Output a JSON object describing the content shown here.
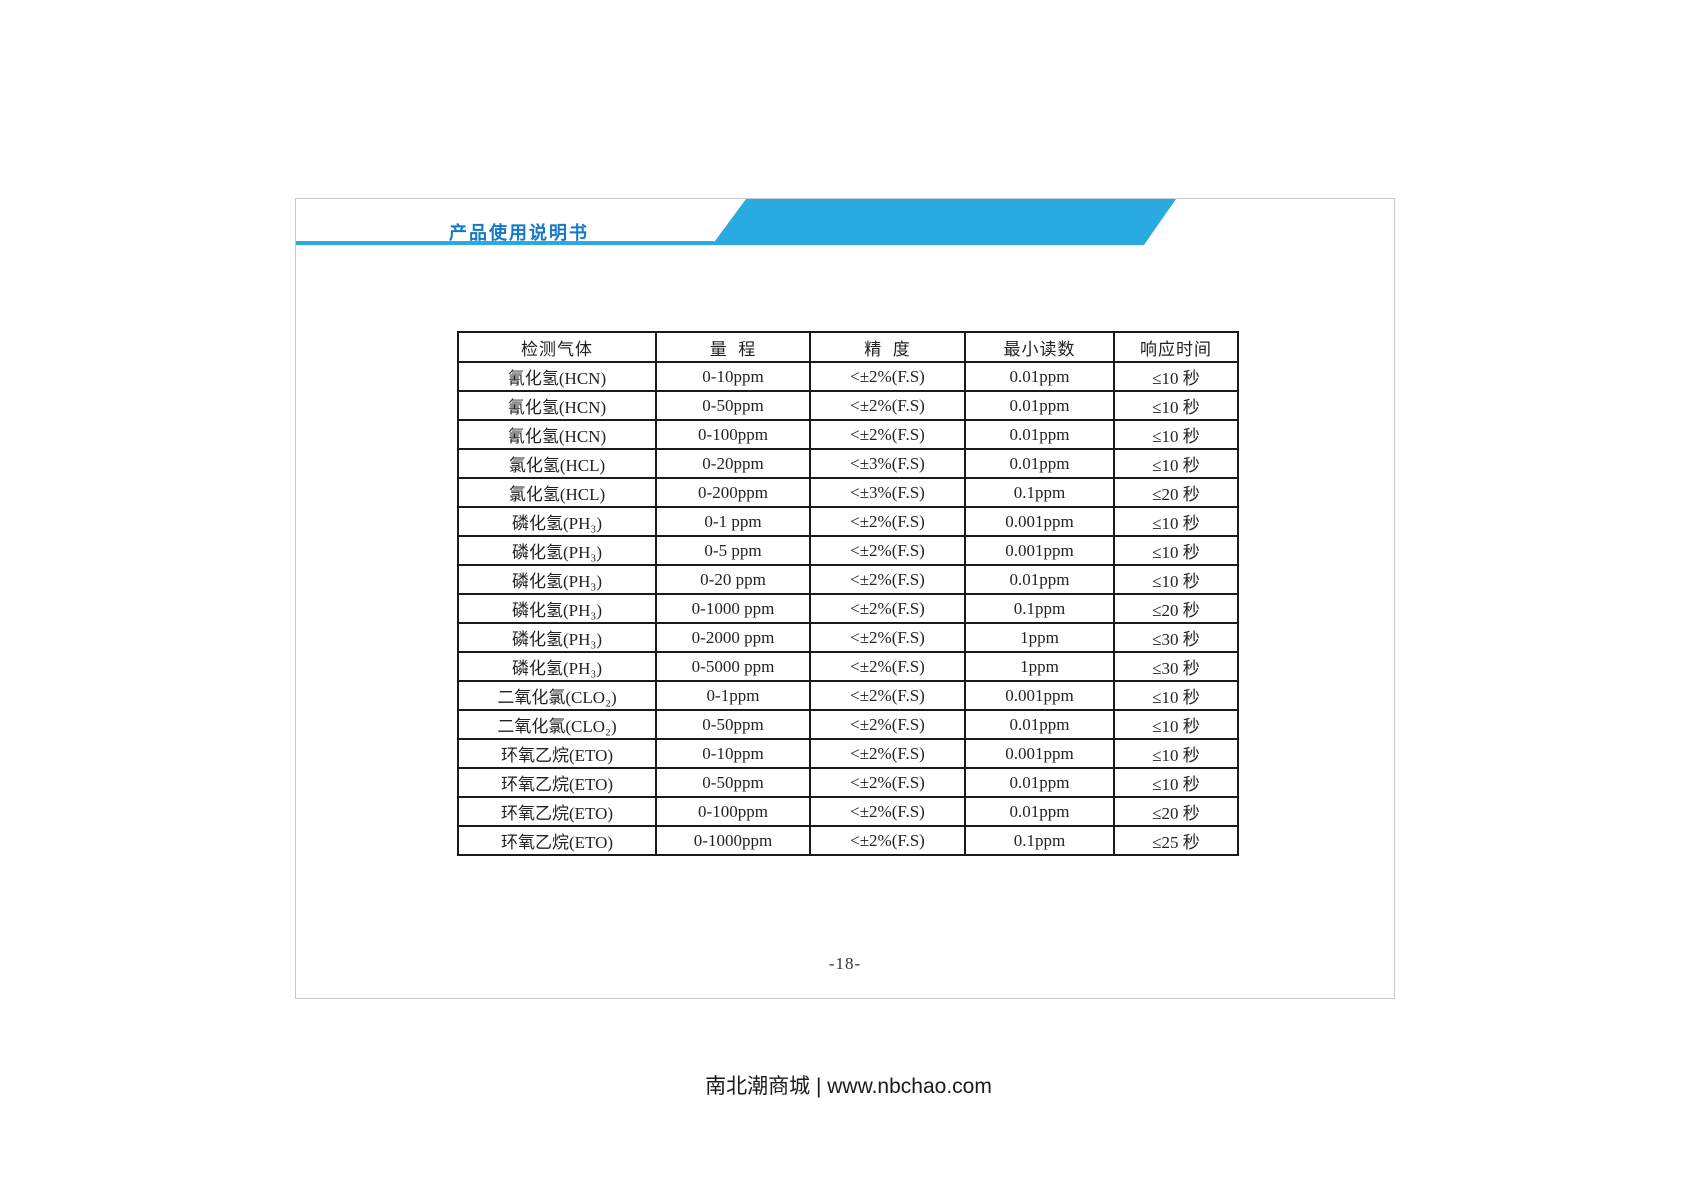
{
  "colors": {
    "accent_blue": "#29abe2",
    "title_blue": "#1478c8",
    "table_border": "#1a1a1a"
  },
  "header": {
    "title": "产品使用说明书"
  },
  "table": {
    "columns": [
      "检测气体",
      "量  程",
      "精  度",
      "最小读数",
      "响应时间"
    ],
    "rows": [
      {
        "gas": "氰化氢(HCN)",
        "range": "0-10ppm",
        "accuracy": "<±2%(F.S)",
        "min_reading": "0.01ppm",
        "response": "≤10 秒"
      },
      {
        "gas": "氰化氢(HCN)",
        "range": "0-50ppm",
        "accuracy": "<±2%(F.S)",
        "min_reading": "0.01ppm",
        "response": "≤10 秒"
      },
      {
        "gas": "氰化氢(HCN)",
        "range": "0-100ppm",
        "accuracy": "<±2%(F.S)",
        "min_reading": "0.01ppm",
        "response": "≤10 秒"
      },
      {
        "gas": "氯化氢(HCL)",
        "range": "0-20ppm",
        "accuracy": "<±3%(F.S)",
        "min_reading": "0.01ppm",
        "response": "≤10 秒"
      },
      {
        "gas": "氯化氢(HCL)",
        "range": "0-200ppm",
        "accuracy": "<±3%(F.S)",
        "min_reading": "0.1ppm",
        "response": "≤20 秒"
      },
      {
        "gas": "磷化氢(PH₃)",
        "range": "0-1 ppm",
        "accuracy": "<±2%(F.S)",
        "min_reading": "0.001ppm",
        "response": "≤10 秒"
      },
      {
        "gas": "磷化氢(PH₃)",
        "range": "0-5 ppm",
        "accuracy": "<±2%(F.S)",
        "min_reading": "0.001ppm",
        "response": "≤10 秒"
      },
      {
        "gas": "磷化氢(PH₃)",
        "range": "0-20 ppm",
        "accuracy": "<±2%(F.S)",
        "min_reading": "0.01ppm",
        "response": "≤10 秒"
      },
      {
        "gas": "磷化氢(PH₃)",
        "range": "0-1000 ppm",
        "accuracy": "<±2%(F.S)",
        "min_reading": "0.1ppm",
        "response": "≤20 秒"
      },
      {
        "gas": "磷化氢(PH₃)",
        "range": "0-2000 ppm",
        "accuracy": "<±2%(F.S)",
        "min_reading": "1ppm",
        "response": "≤30 秒"
      },
      {
        "gas": "磷化氢(PH₃)",
        "range": "0-5000 ppm",
        "accuracy": "<±2%(F.S)",
        "min_reading": "1ppm",
        "response": "≤30 秒"
      },
      {
        "gas": "二氧化氯(CLO₂)",
        "range": "0-1ppm",
        "accuracy": "<±2%(F.S)",
        "min_reading": "0.001ppm",
        "response": "≤10 秒"
      },
      {
        "gas": "二氧化氯(CLO₂)",
        "range": "0-50ppm",
        "accuracy": "<±2%(F.S)",
        "min_reading": "0.01ppm",
        "response": "≤10 秒"
      },
      {
        "gas": "环氧乙烷(ETO)",
        "range": "0-10ppm",
        "accuracy": "<±2%(F.S)",
        "min_reading": "0.001ppm",
        "response": "≤10 秒"
      },
      {
        "gas": "环氧乙烷(ETO)",
        "range": "0-50ppm",
        "accuracy": "<±2%(F.S)",
        "min_reading": "0.01ppm",
        "response": "≤10 秒"
      },
      {
        "gas": "环氧乙烷(ETO)",
        "range": "0-100ppm",
        "accuracy": "<±2%(F.S)",
        "min_reading": "0.01ppm",
        "response": "≤20 秒"
      },
      {
        "gas": "环氧乙烷(ETO)",
        "range": "0-1000ppm",
        "accuracy": "<±2%(F.S)",
        "min_reading": "0.1ppm",
        "response": "≤25 秒"
      }
    ]
  },
  "page_number": "-18-",
  "footer": {
    "text": "南北潮商城 | www.nbchao.com"
  }
}
